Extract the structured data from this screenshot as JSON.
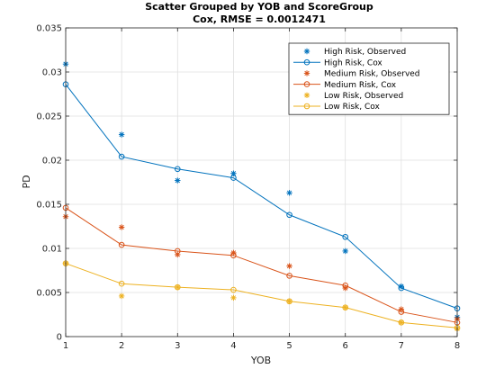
{
  "chart_data": {
    "type": "scatter",
    "title": "Scatter Grouped by YOB and ScoreGroup",
    "subtitle": "Cox, RMSE = 0.0012471",
    "xlabel": "YOB",
    "ylabel": "PD",
    "xlim": [
      1,
      8
    ],
    "ylim": [
      0,
      0.035
    ],
    "xticks": [
      "1",
      "2",
      "3",
      "4",
      "5",
      "6",
      "7",
      "8"
    ],
    "yticks": [
      "0",
      "0.005",
      "0.01",
      "0.015",
      "0.02",
      "0.025",
      "0.03",
      "0.035"
    ],
    "grid": true,
    "legend_position": "top-right",
    "x": [
      1,
      2,
      3,
      4,
      5,
      6,
      7,
      8
    ],
    "series": [
      {
        "name": "High Risk, Observed",
        "kind": "markers",
        "marker": "asterisk",
        "color": "#0072BD",
        "values": [
          0.0309,
          0.0229,
          0.0177,
          0.0185,
          0.0163,
          0.0097,
          0.0057,
          0.0022
        ]
      },
      {
        "name": "High Risk, Cox",
        "kind": "line",
        "marker": "circle",
        "color": "#0072BD",
        "values": [
          0.0286,
          0.0204,
          0.019,
          0.018,
          0.0138,
          0.0113,
          0.0055,
          0.0032
        ]
      },
      {
        "name": "Medium Risk, Observed",
        "kind": "markers",
        "marker": "asterisk",
        "color": "#D95319",
        "values": [
          0.0136,
          0.0124,
          0.0093,
          0.0095,
          0.008,
          0.0055,
          0.0031,
          0.002
        ]
      },
      {
        "name": "Medium Risk, Cox",
        "kind": "line",
        "marker": "circle",
        "color": "#D95319",
        "values": [
          0.0146,
          0.0104,
          0.0097,
          0.0092,
          0.0069,
          0.0058,
          0.0028,
          0.0016
        ]
      },
      {
        "name": "Low Risk, Observed",
        "kind": "markers",
        "marker": "asterisk",
        "color": "#EDB120",
        "values": [
          0.0083,
          0.0046,
          0.0056,
          0.0044,
          0.004,
          0.0033,
          0.0016,
          0.0009
        ]
      },
      {
        "name": "Low Risk, Cox",
        "kind": "line",
        "marker": "circle",
        "color": "#EDB120",
        "values": [
          0.0083,
          0.006,
          0.0056,
          0.0053,
          0.004,
          0.0033,
          0.0016,
          0.001
        ]
      }
    ]
  }
}
